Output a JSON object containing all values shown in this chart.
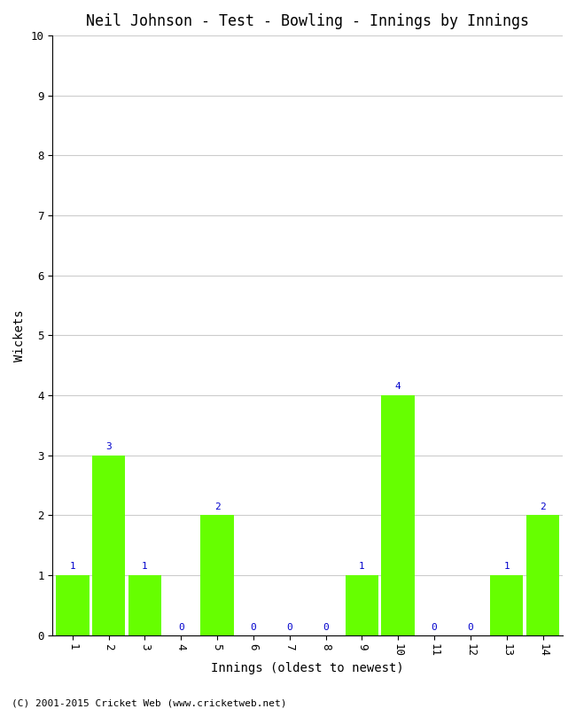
{
  "title": "Neil Johnson - Test - Bowling - Innings by Innings",
  "xlabel": "Innings (oldest to newest)",
  "ylabel": "Wickets",
  "categories": [
    1,
    2,
    3,
    4,
    5,
    6,
    7,
    8,
    9,
    10,
    11,
    12,
    13,
    14
  ],
  "values": [
    1,
    3,
    1,
    0,
    2,
    0,
    0,
    0,
    1,
    4,
    0,
    0,
    1,
    2
  ],
  "bar_color": "#66ff00",
  "label_color": "#0000cc",
  "ylim": [
    0,
    10
  ],
  "yticks": [
    0,
    1,
    2,
    3,
    4,
    5,
    6,
    7,
    8,
    9,
    10
  ],
  "background_color": "#ffffff",
  "grid_color": "#cccccc",
  "title_fontsize": 12,
  "axis_label_fontsize": 10,
  "tick_fontsize": 9,
  "label_fontsize": 8,
  "footer": "(C) 2001-2015 Cricket Web (www.cricketweb.net)",
  "footer_fontsize": 8
}
